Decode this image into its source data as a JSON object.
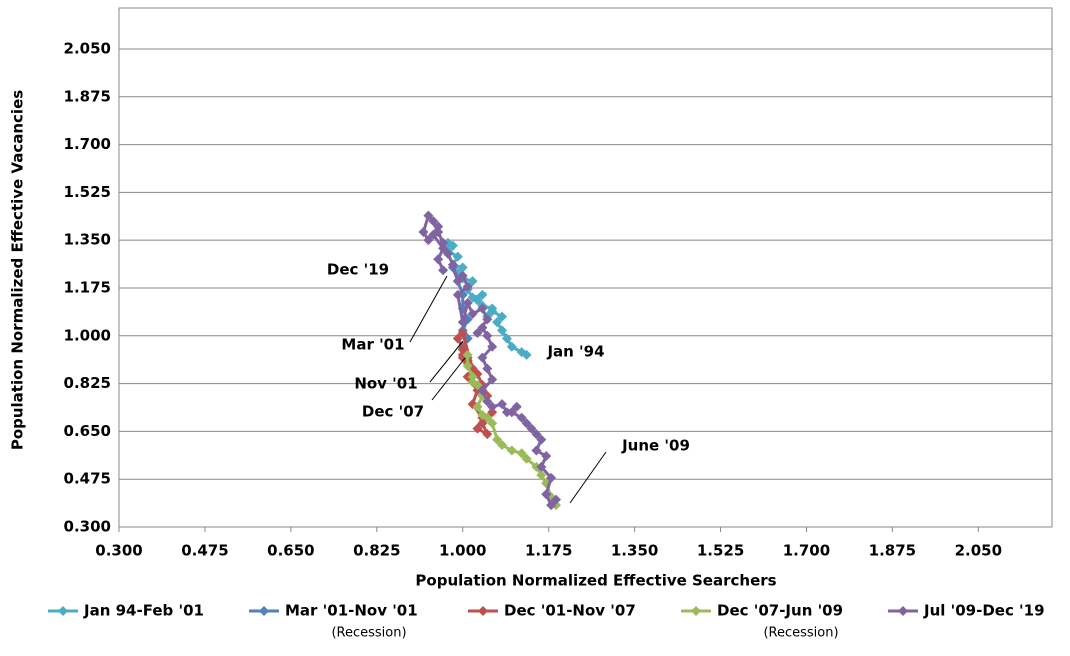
{
  "chart_data": {
    "type": "scatter",
    "lines": true,
    "x_label": "Population Normalized Effective Searchers",
    "y_label": "Population Normalized Effective Vacancies",
    "xlim": [
      0.3,
      2.2
    ],
    "ylim": [
      0.3,
      2.2
    ],
    "xticks": [
      {
        "value": 0.3,
        "label": "0.300"
      },
      {
        "value": 0.475,
        "label": "0.475"
      },
      {
        "value": 0.65,
        "label": "0.650"
      },
      {
        "value": 0.825,
        "label": "0.825"
      },
      {
        "value": 1.0,
        "label": "1.000"
      },
      {
        "value": 1.175,
        "label": "1.175"
      },
      {
        "value": 1.35,
        "label": "1.350"
      },
      {
        "value": 1.525,
        "label": "1.525"
      },
      {
        "value": 1.7,
        "label": "1.700"
      },
      {
        "value": 1.875,
        "label": "1.875"
      },
      {
        "value": 2.05,
        "label": "2.050"
      }
    ],
    "yticks": [
      {
        "value": 0.3,
        "label": "0.300"
      },
      {
        "value": 0.475,
        "label": "0.475"
      },
      {
        "value": 0.65,
        "label": "0.650"
      },
      {
        "value": 0.825,
        "label": "0.825"
      },
      {
        "value": 1.0,
        "label": "1.000"
      },
      {
        "value": 1.175,
        "label": "1.175"
      },
      {
        "value": 1.35,
        "label": "1.350"
      },
      {
        "value": 1.525,
        "label": "1.525"
      },
      {
        "value": 1.7,
        "label": "1.700"
      },
      {
        "value": 1.875,
        "label": "1.875"
      },
      {
        "value": 2.05,
        "label": "2.050"
      }
    ],
    "grid": "y",
    "legend": "bottom",
    "series": [
      {
        "name": "Jan 94-Feb '01",
        "color": "#4bacc6",
        "x": [
          1.13,
          1.12,
          1.1,
          1.09,
          1.08,
          1.07,
          1.08,
          1.06,
          1.05,
          1.06,
          1.04,
          1.03,
          1.04,
          1.02,
          1.01,
          1.02,
          1.0,
          0.99,
          1.0,
          0.98,
          0.99,
          0.97,
          0.98,
          0.97
        ],
        "y": [
          0.93,
          0.94,
          0.96,
          0.99,
          1.02,
          1.05,
          1.07,
          1.09,
          1.07,
          1.1,
          1.11,
          1.13,
          1.15,
          1.14,
          1.17,
          1.2,
          1.21,
          1.23,
          1.25,
          1.26,
          1.29,
          1.31,
          1.33,
          1.34
        ]
      },
      {
        "name": "Mar '01-Nov '01",
        "color": "#4f81bd",
        "note": "(Recession)",
        "x": [
          0.98,
          0.99,
          1.0,
          1.0,
          1.01,
          1.0,
          1.01,
          1.0,
          1.0
        ],
        "y": [
          1.25,
          1.2,
          1.15,
          1.1,
          1.06,
          1.02,
          0.99,
          0.96,
          0.95
        ]
      },
      {
        "name": "Dec '01-Nov '07",
        "color": "#c0504d",
        "x": [
          1.0,
          1.01,
          0.99,
          1.0,
          1.02,
          1.01,
          1.03,
          1.02,
          1.04,
          1.03,
          1.05,
          1.04,
          1.06,
          1.05,
          1.04,
          1.03,
          1.02,
          1.01,
          1.0,
          1.01,
          1.0
        ],
        "y": [
          0.95,
          0.92,
          0.99,
          1.01,
          0.88,
          0.85,
          0.8,
          0.75,
          0.7,
          0.66,
          0.64,
          0.68,
          0.72,
          0.78,
          0.82,
          0.86,
          0.88,
          0.91,
          0.93,
          0.9,
          0.92
        ]
      },
      {
        "name": "Dec '07-Jun '09",
        "color": "#9bbb59",
        "note": "(Recession)",
        "x": [
          1.01,
          1.01,
          1.02,
          1.02,
          1.03,
          1.04,
          1.03,
          1.04,
          1.05,
          1.06,
          1.07,
          1.08,
          1.1,
          1.12,
          1.13,
          1.15,
          1.16,
          1.17,
          1.18,
          1.19
        ],
        "y": [
          0.93,
          0.89,
          0.85,
          0.83,
          0.82,
          0.78,
          0.74,
          0.71,
          0.7,
          0.68,
          0.62,
          0.6,
          0.58,
          0.57,
          0.55,
          0.52,
          0.49,
          0.46,
          0.41,
          0.38
        ]
      },
      {
        "name": "Jul '09-Dec '19",
        "color": "#8064a2",
        "x": [
          1.19,
          1.18,
          1.17,
          1.18,
          1.16,
          1.17,
          1.15,
          1.16,
          1.14,
          1.15,
          1.13,
          1.12,
          1.1,
          1.11,
          1.09,
          1.08,
          1.06,
          1.05,
          1.04,
          1.06,
          1.05,
          1.04,
          1.06,
          1.05,
          1.04,
          1.03,
          1.05,
          1.04,
          1.02,
          1.01,
          1.0,
          0.99,
          1.01,
          1.0,
          0.99,
          0.98,
          0.97,
          0.96,
          0.95,
          0.94,
          0.93,
          0.92,
          0.93,
          0.95,
          0.94,
          0.96,
          0.95,
          0.96
        ],
        "y": [
          0.4,
          0.38,
          0.42,
          0.48,
          0.52,
          0.56,
          0.58,
          0.62,
          0.66,
          0.64,
          0.68,
          0.7,
          0.72,
          0.74,
          0.72,
          0.75,
          0.74,
          0.76,
          0.8,
          0.84,
          0.88,
          0.92,
          0.96,
          1.0,
          1.03,
          1.01,
          1.06,
          1.1,
          1.08,
          1.12,
          1.05,
          1.15,
          1.18,
          1.22,
          1.2,
          1.26,
          1.3,
          1.34,
          1.38,
          1.42,
          1.44,
          1.38,
          1.35,
          1.4,
          1.37,
          1.32,
          1.28,
          1.24
        ]
      }
    ],
    "annotations": [
      "Dec '19",
      "Mar '01",
      "Nov '01",
      "Dec '07",
      "Jan '94",
      "June '09"
    ]
  }
}
